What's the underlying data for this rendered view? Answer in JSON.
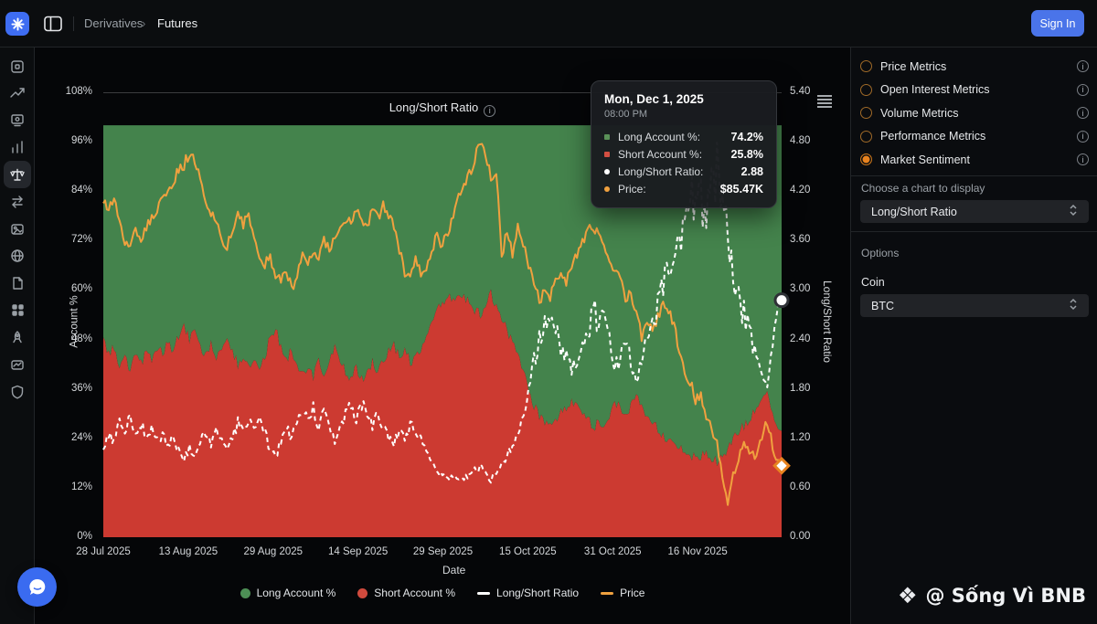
{
  "topbar": {
    "breadcrumb": {
      "section": "Derivatives",
      "separator": "›",
      "page": "Futures"
    },
    "sign_in_label": "Sign In"
  },
  "sidebar": {
    "icons": [
      "overview-icon",
      "trend-icon",
      "screener-icon",
      "stats-icon",
      "derivatives-icon",
      "swap-icon",
      "image-icon",
      "globe-icon",
      "document-icon",
      "apps-icon",
      "rocket-icon",
      "chart-image-icon",
      "shield-icon"
    ],
    "selected_index": 4
  },
  "chart": {
    "title": "Long/Short Ratio",
    "y_left_label": "Account %",
    "y_right_label": "Long/Short Ratio",
    "x_label": "Date",
    "y_left_ticks": [
      "108%",
      "96%",
      "84%",
      "72%",
      "60%",
      "48%",
      "36%",
      "24%",
      "12%",
      "0%"
    ],
    "y_right_ticks": [
      "5.40",
      "4.80",
      "4.20",
      "3.60",
      "3.00",
      "2.40",
      "1.80",
      "1.20",
      "0.60",
      "0.00"
    ],
    "x_ticks": [
      "28 Jul 2025",
      "13 Aug 2025",
      "29 Aug 2025",
      "14 Sep 2025",
      "29 Sep 2025",
      "15 Oct 2025",
      "31 Oct 2025",
      "16 Nov 2025"
    ],
    "legend": [
      {
        "label": "Long Account %",
        "marker": "dot",
        "color": "#4d8f55"
      },
      {
        "label": "Short Account %",
        "marker": "dot",
        "color": "#d04a3d"
      },
      {
        "label": "Long/Short Ratio",
        "marker": "bar",
        "color": "#ffffff"
      },
      {
        "label": "Price",
        "marker": "bar",
        "color": "#f0a13f"
      }
    ]
  },
  "tooltip": {
    "date": "Mon, Dec 1, 2025",
    "time": "08:00 PM",
    "rows": [
      {
        "label": "Long Account %:",
        "value": "74.2%",
        "shape": "square",
        "color": "#5a9158"
      },
      {
        "label": "Short Account %:",
        "value": "25.8%",
        "shape": "square",
        "color": "#d34f42"
      },
      {
        "label": "Long/Short Ratio:",
        "value": "2.88",
        "shape": "circle",
        "color": "#ffffff"
      },
      {
        "label": "Price:",
        "value": "$85.47K",
        "shape": "circle",
        "color": "#f0a13f"
      }
    ]
  },
  "right_panel": {
    "metrics": [
      {
        "label": "Price Metrics",
        "selected": false
      },
      {
        "label": "Open Interest Metrics",
        "selected": false
      },
      {
        "label": "Volume Metrics",
        "selected": false
      },
      {
        "label": "Performance Metrics",
        "selected": false
      },
      {
        "label": "Market Sentiment",
        "selected": true
      }
    ],
    "choose_label": "Choose a chart to display",
    "chart_select_value": "Long/Short Ratio",
    "options_label": "Options",
    "coin_label": "Coin",
    "coin_select_value": "BTC"
  },
  "watermark": {
    "diamond": "❖",
    "text": "@ Sống Vì BNB"
  },
  "colors": {
    "long_area": "#44834c",
    "short_area": "#cc3a31",
    "ratio_line": "#ffffff",
    "price_line": "#f0a13f",
    "accent_blue": "#4a74e9",
    "accent_orange": "#e8831f"
  },
  "chart_data": {
    "type": "area",
    "title": "Long/Short Ratio",
    "xlabel": "Date",
    "x_start": "2025-07-28",
    "x_end": "2025-12-01",
    "points_per_day": 1,
    "x_tick_labels": [
      "28 Jul 2025",
      "13 Aug 2025",
      "29 Aug 2025",
      "14 Sep 2025",
      "29 Sep 2025",
      "15 Oct 2025",
      "31 Oct 2025",
      "16 Nov 2025"
    ],
    "y_left_axis": {
      "label": "Account %",
      "min": 0,
      "max": 108,
      "stacked_total": 100
    },
    "y_right_axis": {
      "label": "Long/Short Ratio",
      "min": 0,
      "max": 5.4
    },
    "grid": false,
    "legend_position": "bottom",
    "series": [
      {
        "name": "Short Account %",
        "type": "area",
        "axis": "left",
        "color": "#cc3a31",
        "values": [
          48.5,
          44.0,
          46.5,
          41.5,
          43.5,
          40.5,
          44.0,
          42.0,
          45.5,
          43.0,
          46.0,
          44.5,
          47.5,
          45.0,
          49.0,
          52.0,
          47.5,
          51.0,
          46.0,
          44.5,
          47.0,
          43.5,
          46.5,
          49.5,
          45.0,
          42.0,
          44.5,
          41.5,
          43.5,
          40.5,
          44.0,
          48.5,
          50.5,
          46.0,
          43.0,
          45.5,
          42.0,
          39.5,
          41.5,
          39.0,
          42.5,
          40.0,
          43.5,
          46.5,
          42.5,
          40.0,
          38.5,
          41.0,
          38.0,
          40.5,
          42.5,
          39.5,
          43.0,
          45.5,
          46.5,
          44.0,
          46.0,
          42.5,
          43.5,
          46.0,
          48.5,
          52.0,
          55.5,
          57.0,
          58.5,
          57.0,
          59.5,
          58.0,
          57.5,
          55.0,
          54.0,
          56.5,
          59.0,
          56.0,
          53.5,
          50.0,
          47.5,
          44.0,
          41.0,
          36.5,
          32.0,
          29.5,
          28.0,
          27.5,
          28.5,
          30.0,
          31.5,
          33.0,
          32.0,
          30.0,
          28.5,
          26.5,
          28.0,
          27.0,
          30.0,
          33.0,
          31.0,
          29.5,
          32.0,
          34.0,
          31.5,
          29.5,
          28.0,
          26.5,
          25.0,
          23.5,
          22.5,
          21.5,
          20.5,
          20.0,
          19.5,
          19.5,
          20.5,
          19.5,
          18.5,
          19.0,
          21.0,
          23.5,
          25.5,
          27.0,
          28.5,
          30.5,
          33.5,
          35.5,
          32.0,
          28.0,
          25.8
        ]
      },
      {
        "name": "Long Account %",
        "type": "area",
        "axis": "left",
        "color": "#44834c",
        "derived": "100 - Short Account % (stacked to 100%)"
      },
      {
        "name": "Long/Short Ratio",
        "type": "line",
        "style": "dashed",
        "axis": "right",
        "color": "#ffffff",
        "derived": "Long Account % / Short Account %"
      },
      {
        "name": "Price",
        "type": "line",
        "axis": "overlay-usd-thousands",
        "color": "#f0a13f",
        "values": [
          118.2,
          117.5,
          118.8,
          116.5,
          113.2,
          112.5,
          114.8,
          113.5,
          115.0,
          116.5,
          117.2,
          118.5,
          119.5,
          121.0,
          122.5,
          123.0,
          124.5,
          123.2,
          121.5,
          118.0,
          117.0,
          115.5,
          113.5,
          112.8,
          114.5,
          116.8,
          115.5,
          117.0,
          113.5,
          112.0,
          110.5,
          111.5,
          109.0,
          108.5,
          109.5,
          107.5,
          109.0,
          111.5,
          110.5,
          112.0,
          111.0,
          113.5,
          112.5,
          114.0,
          115.5,
          116.0,
          115.8,
          117.2,
          116.0,
          115.5,
          117.5,
          116.5,
          117.8,
          116.8,
          115.5,
          112.5,
          109.5,
          109.0,
          111.5,
          109.5,
          109.8,
          112.5,
          114.0,
          113.0,
          114.5,
          117.0,
          119.5,
          120.5,
          122.0,
          123.5,
          126.2,
          124.0,
          121.5,
          122.5,
          111.5,
          114.8,
          112.0,
          115.2,
          113.0,
          110.5,
          108.0,
          106.0,
          107.5,
          106.5,
          108.5,
          110.0,
          108.0,
          110.5,
          111.8,
          113.5,
          114.8,
          115.5,
          114.0,
          113.2,
          111.0,
          110.0,
          108.5,
          106.5,
          107.0,
          104.5,
          101.5,
          103.5,
          102.0,
          104.0,
          105.5,
          104.8,
          103.0,
          99.5,
          97.0,
          96.0,
          93.5,
          94.5,
          91.5,
          90.0,
          88.5,
          84.5,
          81.0,
          84.0,
          86.5,
          88.0,
          87.0,
          86.5,
          88.5,
          90.5,
          89.0,
          86.0,
          85.47
        ]
      }
    ],
    "last_point": {
      "date": "Mon, Dec 1, 2025",
      "time": "08:00 PM",
      "long_account_pct": 74.2,
      "short_account_pct": 25.8,
      "long_short_ratio": 2.88,
      "price": "$85.47K"
    }
  }
}
